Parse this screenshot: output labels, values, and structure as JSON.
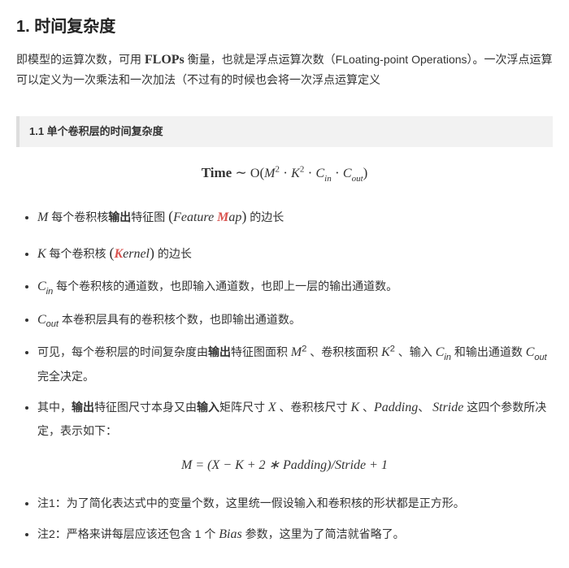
{
  "title": "1. 时间复杂度",
  "intro_prefix": "即模型的运算次数，可用 ",
  "intro_flops": "FLOPs",
  "intro_suffix": " 衡量，也就是浮点运算次数（FLoating-point Operations）。一次浮点运算可以定义为一次乘法和一次加法（不过有的时候也会将一次浮点运算定义",
  "subhead": "1.1 单个卷积层的时间复杂度",
  "formula1": {
    "label": "Time",
    "tilde": " ∼ ",
    "O": "O",
    "open": "(",
    "t1": "M",
    "e1": "2",
    "dot1": " · ",
    "t2": "K",
    "e2": "2",
    "dot2": " · ",
    "t3": "C",
    "s3": "in",
    "dot3": " · ",
    "t4": "C",
    "s4": "out",
    "close": ")"
  },
  "li1": {
    "sym": "M",
    "pre": " 每个卷积核",
    "bold1": "输出",
    "mid": "特征图 ",
    "paren_open": "(",
    "feature_pre": "Feature ",
    "red": "M",
    "feature_post": "ap",
    "paren_close": ")",
    "tail": " 的边长"
  },
  "li2": {
    "sym": "K",
    "pre": " 每个卷积核 ",
    "paren_open": "(",
    "red": "K",
    "kernel_post": "ernel",
    "paren_close": ")",
    "tail": " 的边长"
  },
  "li3": {
    "sym": "C",
    "sub": "in",
    "text": " 每个卷积核的通道数，也即输入通道数，也即上一层的输出通道数。"
  },
  "li4": {
    "sym": "C",
    "sub": "out",
    "text": " 本卷积层具有的卷积核个数，也即输出通道数。"
  },
  "li5": {
    "p1": "可见，每个卷积层的时间复杂度由",
    "b1": "输出",
    "p2": "特征图面积 ",
    "m1": "M",
    "e1": "2",
    "p3": " 、卷积核面积 ",
    "m2": "K",
    "e2": "2",
    "p4": " 、输入 ",
    "m3": "C",
    "s3": "in",
    "p5": " 和输出通道数 ",
    "m4": "C",
    "s4": "out",
    "p6": " 完全决定。"
  },
  "li6": {
    "p1": "其中，",
    "b1": "输出",
    "p2": "特征图尺寸本身又由",
    "b2": "输入",
    "p3": "矩阵尺寸 ",
    "m1": "X",
    "p4": " 、卷积核尺寸 ",
    "m2": "K",
    "p5": " 、",
    "m3": "Padding",
    "p6": "、 ",
    "m4": "Stride",
    "p7": " 这四个参数所决定，表示如下："
  },
  "formula2": "M = (X − K + 2 ∗ Padding)/Stride + 1",
  "note1": "注1：为了简化表达式中的变量个数，这里统一假设输入和卷积核的形状都是正方形。",
  "note2_pre": "注2：严格来讲每层应该还包含 1 个 ",
  "note2_bias": "Bias",
  "note2_post": " 参数，这里为了简洁就省略了。",
  "colors": {
    "text": "#333333",
    "red": "#d9534f",
    "subhead_bg": "#f2f2f2",
    "subhead_border": "#dddddd",
    "bg": "#ffffff"
  }
}
